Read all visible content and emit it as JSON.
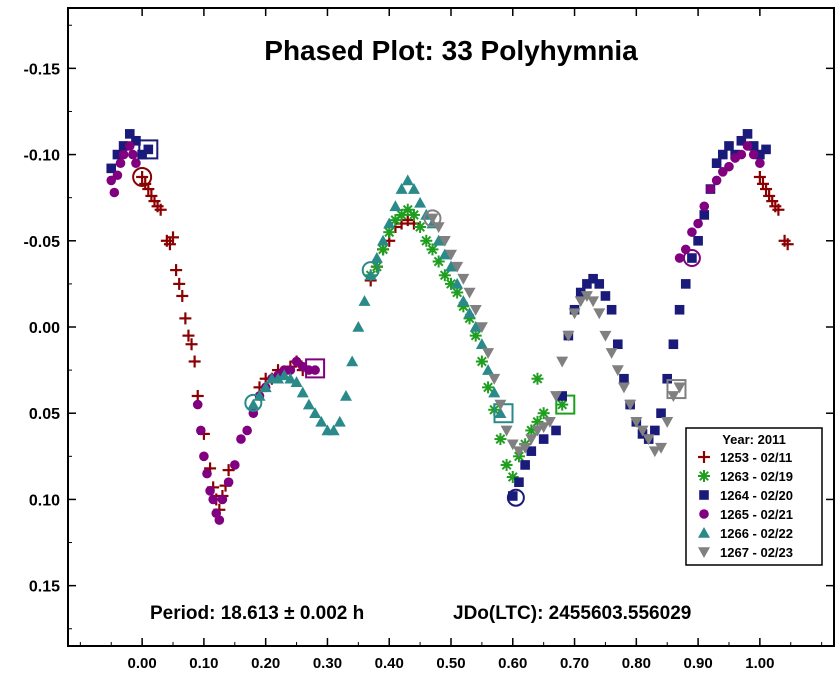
{
  "chart_data": {
    "type": "scatter",
    "title": "Phased Plot: 33 Polyhymnia",
    "footer": {
      "period": "Period: 18.613 ± 0.002 h",
      "epoch": "JDo(LTC): 2455603.556029"
    },
    "xlim": [
      -0.12,
      1.12
    ],
    "ylim": [
      -0.185,
      0.185
    ],
    "y_inverted": true,
    "grid": false,
    "x_ticks": [
      0.0,
      0.1,
      0.2,
      0.3,
      0.4,
      0.5,
      0.6,
      0.7,
      0.8,
      0.9,
      1.0
    ],
    "x_tick_labels": [
      "0.00",
      "0.10",
      "0.20",
      "0.30",
      "0.40",
      "0.50",
      "0.60",
      "0.70",
      "0.80",
      "0.90",
      "1.00"
    ],
    "y_ticks": [
      -0.15,
      -0.1,
      -0.05,
      0.0,
      0.05,
      0.1,
      0.15
    ],
    "y_tick_labels": [
      "-0.15",
      "-0.10",
      "-0.05",
      "0.00",
      "0.05",
      "0.10",
      "0.15"
    ],
    "legend": {
      "title": "Year: 2011",
      "placement": "bottom-right"
    },
    "series": [
      {
        "name": "1253 - 02/11",
        "color": "#8b0000",
        "marker": "plus",
        "points": [
          [
            0.0,
            -0.087
          ],
          [
            0.005,
            -0.083
          ],
          [
            0.01,
            -0.08
          ],
          [
            0.015,
            -0.076
          ],
          [
            0.02,
            -0.073
          ],
          [
            0.025,
            -0.07
          ],
          [
            0.03,
            -0.068
          ],
          [
            0.04,
            -0.05
          ],
          [
            0.045,
            -0.048
          ],
          [
            0.05,
            -0.052
          ],
          [
            0.055,
            -0.033
          ],
          [
            0.06,
            -0.025
          ],
          [
            0.065,
            -0.018
          ],
          [
            0.07,
            -0.005
          ],
          [
            0.075,
            0.005
          ],
          [
            0.08,
            0.01
          ],
          [
            0.085,
            0.02
          ],
          [
            0.09,
            0.04
          ],
          [
            0.1,
            0.062
          ],
          [
            0.11,
            0.082
          ],
          [
            0.115,
            0.093
          ],
          [
            0.12,
            0.1
          ],
          [
            0.125,
            0.106
          ],
          [
            0.13,
            0.098
          ],
          [
            0.135,
            0.092
          ],
          [
            0.14,
            0.083
          ],
          [
            0.19,
            0.035
          ],
          [
            0.2,
            0.03
          ],
          [
            0.21,
            0.03
          ],
          [
            0.22,
            0.025
          ],
          [
            0.23,
            0.027
          ],
          [
            0.24,
            0.023
          ],
          [
            0.25,
            0.02
          ],
          [
            0.26,
            0.025
          ],
          [
            0.37,
            -0.027
          ],
          [
            0.38,
            -0.035
          ],
          [
            0.39,
            -0.045
          ],
          [
            0.4,
            -0.05
          ],
          [
            0.41,
            -0.058
          ],
          [
            0.42,
            -0.06
          ],
          [
            0.43,
            -0.062
          ],
          [
            0.44,
            -0.06
          ],
          [
            1.0,
            -0.087
          ],
          [
            1.005,
            -0.083
          ],
          [
            1.01,
            -0.08
          ],
          [
            1.015,
            -0.076
          ],
          [
            1.02,
            -0.073
          ],
          [
            1.025,
            -0.07
          ],
          [
            1.03,
            -0.068
          ],
          [
            1.04,
            -0.05
          ],
          [
            1.045,
            -0.048
          ]
        ],
        "highlight": [
          0.0,
          -0.087
        ],
        "highlight_shape": "circle"
      },
      {
        "name": "1263 - 02/19",
        "color": "#1f9e1f",
        "marker": "star",
        "points": [
          [
            0.37,
            -0.03
          ],
          [
            0.38,
            -0.035
          ],
          [
            0.39,
            -0.045
          ],
          [
            0.4,
            -0.055
          ],
          [
            0.41,
            -0.062
          ],
          [
            0.42,
            -0.065
          ],
          [
            0.43,
            -0.068
          ],
          [
            0.44,
            -0.065
          ],
          [
            0.45,
            -0.058
          ],
          [
            0.46,
            -0.05
          ],
          [
            0.47,
            -0.045
          ],
          [
            0.48,
            -0.038
          ],
          [
            0.49,
            -0.03
          ],
          [
            0.5,
            -0.025
          ],
          [
            0.51,
            -0.02
          ],
          [
            0.52,
            -0.012
          ],
          [
            0.53,
            -0.005
          ],
          [
            0.54,
            0.005
          ],
          [
            0.55,
            0.02
          ],
          [
            0.56,
            0.035
          ],
          [
            0.57,
            0.048
          ],
          [
            0.58,
            0.065
          ],
          [
            0.59,
            0.08
          ],
          [
            0.6,
            0.087
          ],
          [
            0.61,
            0.075
          ],
          [
            0.62,
            0.068
          ],
          [
            0.63,
            0.06
          ],
          [
            0.64,
            0.055
          ],
          [
            0.65,
            0.05
          ],
          [
            0.64,
            0.03
          ],
          [
            0.68,
            0.045
          ]
        ],
        "highlight": [
          0.685,
          0.045
        ],
        "highlight_shape": "square"
      },
      {
        "name": "1264 - 02/20",
        "color": "#1a1a7a",
        "marker": "square",
        "points": [
          [
            -0.05,
            -0.092
          ],
          [
            -0.04,
            -0.1
          ],
          [
            -0.03,
            -0.105
          ],
          [
            -0.02,
            -0.112
          ],
          [
            -0.01,
            -0.108
          ],
          [
            0.0,
            -0.1
          ],
          [
            0.01,
            -0.103
          ],
          [
            0.6,
            0.098
          ],
          [
            0.61,
            0.09
          ],
          [
            0.62,
            0.08
          ],
          [
            0.63,
            0.072
          ],
          [
            0.65,
            0.065
          ],
          [
            0.67,
            0.06
          ],
          [
            0.68,
            0.04
          ],
          [
            0.69,
            0.005
          ],
          [
            0.7,
            -0.01
          ],
          [
            0.71,
            -0.02
          ],
          [
            0.72,
            -0.025
          ],
          [
            0.73,
            -0.028
          ],
          [
            0.74,
            -0.025
          ],
          [
            0.75,
            -0.018
          ],
          [
            0.76,
            -0.01
          ],
          [
            0.77,
            0.01
          ],
          [
            0.78,
            0.03
          ],
          [
            0.79,
            0.045
          ],
          [
            0.8,
            0.055
          ],
          [
            0.81,
            0.062
          ],
          [
            0.82,
            0.065
          ],
          [
            0.83,
            0.06
          ],
          [
            0.84,
            0.05
          ],
          [
            0.85,
            0.03
          ],
          [
            0.86,
            0.01
          ],
          [
            0.87,
            -0.01
          ],
          [
            0.88,
            -0.025
          ],
          [
            0.89,
            -0.04
          ],
          [
            0.9,
            -0.05
          ],
          [
            0.91,
            -0.065
          ],
          [
            0.92,
            -0.08
          ],
          [
            0.93,
            -0.095
          ],
          [
            0.94,
            -0.1
          ],
          [
            0.95,
            -0.105
          ],
          [
            0.96,
            -0.1
          ],
          [
            0.97,
            -0.108
          ],
          [
            0.98,
            -0.112
          ],
          [
            0.99,
            -0.105
          ],
          [
            1.0,
            -0.1
          ],
          [
            1.01,
            -0.103
          ]
        ],
        "highlight": [
          0.01,
          -0.103
        ],
        "highlight_shape": "square"
      },
      {
        "name": "1265 - 02/21",
        "color": "#800080",
        "marker": "circle",
        "points": [
          [
            -0.05,
            -0.085
          ],
          [
            -0.045,
            -0.078
          ],
          [
            -0.04,
            -0.088
          ],
          [
            -0.035,
            -0.095
          ],
          [
            -0.03,
            -0.1
          ],
          [
            -0.02,
            -0.105
          ],
          [
            -0.015,
            -0.1
          ],
          [
            -0.01,
            -0.095
          ],
          [
            0.09,
            0.045
          ],
          [
            0.095,
            0.06
          ],
          [
            0.1,
            0.075
          ],
          [
            0.105,
            0.085
          ],
          [
            0.11,
            0.095
          ],
          [
            0.115,
            0.1
          ],
          [
            0.12,
            0.108
          ],
          [
            0.125,
            0.112
          ],
          [
            0.13,
            0.1
          ],
          [
            0.14,
            0.09
          ],
          [
            0.15,
            0.08
          ],
          [
            0.16,
            0.065
          ],
          [
            0.17,
            0.06
          ],
          [
            0.18,
            0.05
          ],
          [
            0.19,
            0.04
          ],
          [
            0.2,
            0.035
          ],
          [
            0.21,
            0.03
          ],
          [
            0.22,
            0.028
          ],
          [
            0.23,
            0.025
          ],
          [
            0.24,
            0.025
          ],
          [
            0.25,
            0.02
          ],
          [
            0.26,
            0.023
          ],
          [
            0.27,
            0.025
          ],
          [
            0.28,
            0.025
          ],
          [
            0.87,
            -0.04
          ],
          [
            0.88,
            -0.045
          ],
          [
            0.89,
            -0.055
          ],
          [
            0.9,
            -0.06
          ],
          [
            0.91,
            -0.07
          ],
          [
            0.92,
            -0.08
          ],
          [
            0.93,
            -0.085
          ],
          [
            0.94,
            -0.09
          ],
          [
            0.95,
            -0.093
          ],
          [
            0.96,
            -0.098
          ],
          [
            0.97,
            -0.1
          ],
          [
            0.98,
            -0.105
          ],
          [
            0.99,
            -0.1
          ],
          [
            1.0,
            -0.095
          ]
        ],
        "highlight": [
          0.28,
          0.024
        ],
        "highlight_shape": "square"
      },
      {
        "name": "1266 - 02/22",
        "color": "#2a8a8a",
        "marker": "triangle",
        "points": [
          [
            0.18,
            0.045
          ],
          [
            0.19,
            0.04
          ],
          [
            0.2,
            0.035
          ],
          [
            0.21,
            0.03
          ],
          [
            0.22,
            0.03
          ],
          [
            0.23,
            0.028
          ],
          [
            0.24,
            0.03
          ],
          [
            0.25,
            0.032
          ],
          [
            0.26,
            0.038
          ],
          [
            0.27,
            0.045
          ],
          [
            0.28,
            0.05
          ],
          [
            0.29,
            0.055
          ],
          [
            0.3,
            0.06
          ],
          [
            0.31,
            0.06
          ],
          [
            0.32,
            0.055
          ],
          [
            0.33,
            0.04
          ],
          [
            0.34,
            0.02
          ],
          [
            0.35,
            0.0
          ],
          [
            0.36,
            -0.015
          ],
          [
            0.37,
            -0.03
          ],
          [
            0.38,
            -0.04
          ],
          [
            0.39,
            -0.05
          ],
          [
            0.4,
            -0.06
          ],
          [
            0.41,
            -0.07
          ],
          [
            0.42,
            -0.08
          ],
          [
            0.43,
            -0.085
          ],
          [
            0.44,
            -0.08
          ],
          [
            0.45,
            -0.072
          ],
          [
            0.46,
            -0.065
          ],
          [
            0.47,
            -0.06
          ],
          [
            0.48,
            -0.05
          ],
          [
            0.49,
            -0.042
          ],
          [
            0.5,
            -0.035
          ],
          [
            0.51,
            -0.025
          ],
          [
            0.52,
            -0.015
          ],
          [
            0.53,
            -0.008
          ],
          [
            0.54,
            0.0
          ],
          [
            0.55,
            0.01
          ],
          [
            0.56,
            0.025
          ],
          [
            0.57,
            0.038
          ],
          [
            0.58,
            0.05
          ]
        ],
        "highlight": [
          0.585,
          0.05
        ],
        "highlight_shape": "square"
      },
      {
        "name": "1267 - 02/23",
        "color": "#808080",
        "marker": "triangle-down",
        "points": [
          [
            0.47,
            -0.063
          ],
          [
            0.48,
            -0.058
          ],
          [
            0.49,
            -0.05
          ],
          [
            0.5,
            -0.042
          ],
          [
            0.51,
            -0.035
          ],
          [
            0.52,
            -0.028
          ],
          [
            0.53,
            -0.02
          ],
          [
            0.54,
            -0.01
          ],
          [
            0.55,
            0.0
          ],
          [
            0.56,
            0.015
          ],
          [
            0.57,
            0.03
          ],
          [
            0.58,
            0.045
          ],
          [
            0.59,
            0.06
          ],
          [
            0.6,
            0.068
          ],
          [
            0.61,
            0.072
          ],
          [
            0.62,
            0.07
          ],
          [
            0.63,
            0.065
          ],
          [
            0.64,
            0.06
          ],
          [
            0.65,
            0.058
          ],
          [
            0.66,
            0.055
          ],
          [
            0.67,
            0.04
          ],
          [
            0.68,
            0.02
          ],
          [
            0.69,
            0.005
          ],
          [
            0.7,
            -0.008
          ],
          [
            0.71,
            -0.015
          ],
          [
            0.72,
            -0.018
          ],
          [
            0.73,
            -0.015
          ],
          [
            0.74,
            -0.008
          ],
          [
            0.75,
            0.005
          ],
          [
            0.76,
            0.015
          ],
          [
            0.77,
            0.025
          ],
          [
            0.78,
            0.035
          ],
          [
            0.79,
            0.045
          ],
          [
            0.8,
            0.055
          ],
          [
            0.81,
            0.06
          ],
          [
            0.82,
            0.065
          ],
          [
            0.83,
            0.072
          ],
          [
            0.84,
            0.07
          ],
          [
            0.85,
            0.055
          ],
          [
            0.86,
            0.04
          ],
          [
            0.87,
            0.035
          ]
        ],
        "highlight": [
          0.865,
          0.036
        ],
        "highlight_shape": "square"
      }
    ],
    "extra_circles": [
      {
        "series": 3,
        "point": [
          0.89,
          -0.04
        ]
      },
      {
        "series": 4,
        "point": [
          0.37,
          -0.033
        ]
      },
      {
        "series": 4,
        "point": [
          0.18,
          0.044
        ]
      },
      {
        "series": 5,
        "point": [
          0.47,
          -0.063
        ]
      },
      {
        "series": 2,
        "point": [
          0.605,
          0.099
        ]
      }
    ]
  }
}
